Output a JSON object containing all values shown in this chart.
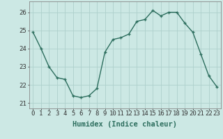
{
  "x": [
    0,
    1,
    2,
    3,
    4,
    5,
    6,
    7,
    8,
    9,
    10,
    11,
    12,
    13,
    14,
    15,
    16,
    17,
    18,
    19,
    20,
    21,
    22,
    23
  ],
  "y": [
    24.9,
    24.0,
    23.0,
    22.4,
    22.3,
    21.4,
    21.3,
    21.4,
    21.8,
    23.8,
    24.5,
    24.6,
    24.8,
    25.5,
    25.6,
    26.1,
    25.8,
    26.0,
    26.0,
    25.4,
    24.9,
    23.7,
    22.5,
    21.9
  ],
  "line_color": "#2d6e5e",
  "marker": "+",
  "marker_size": 3,
  "marker_linewidth": 1.0,
  "line_width": 1.0,
  "bg_color": "#cce8e4",
  "grid_color": "#aed0cb",
  "xlabel": "Humidex (Indice chaleur)",
  "xlabel_fontsize": 7.5,
  "tick_fontsize": 6.5,
  "yticks": [
    21,
    22,
    23,
    24,
    25,
    26
  ],
  "ylim": [
    20.7,
    26.6
  ],
  "xlim": [
    -0.5,
    23.5
  ]
}
